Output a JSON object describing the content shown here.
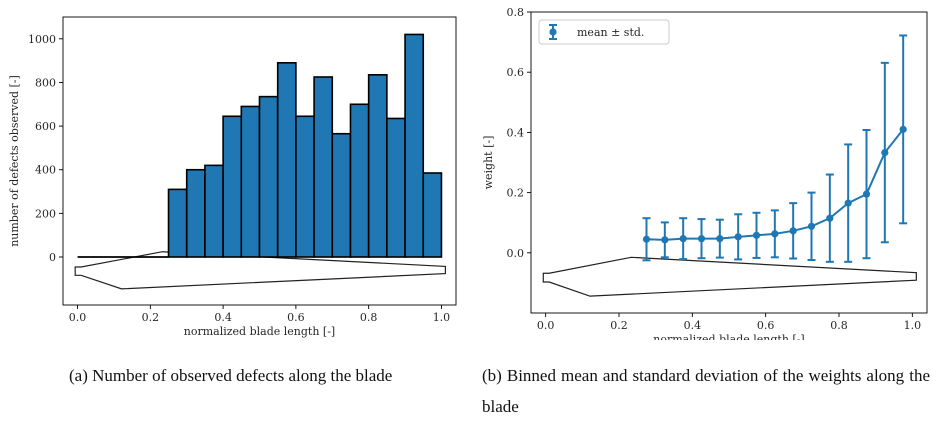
{
  "chart_data": [
    {
      "type": "bar",
      "ylabel": "number of defects observed [-]",
      "xlabel": "normalized blade length [-]",
      "xlim": [
        -0.04,
        1.04
      ],
      "ylim": [
        -220,
        1100
      ],
      "xticks": [
        0.0,
        0.2,
        0.4,
        0.6,
        0.8,
        1.0
      ],
      "xtick_labels": [
        "0.0",
        "0.2",
        "0.4",
        "0.6",
        "0.8",
        "1.0"
      ],
      "yticks": [
        0,
        200,
        400,
        600,
        800,
        1000
      ],
      "ytick_labels": [
        "0",
        "200",
        "400",
        "600",
        "800",
        "1000"
      ],
      "bin_edges": [
        0.25,
        0.3,
        0.35,
        0.4,
        0.45,
        0.5,
        0.55,
        0.6,
        0.65,
        0.7,
        0.75,
        0.8,
        0.85,
        0.9,
        0.95,
        1.0
      ],
      "values": [
        310,
        400,
        420,
        645,
        690,
        735,
        890,
        645,
        825,
        565,
        700,
        835,
        635,
        1020,
        385
      ],
      "zero_line": [
        0.0,
        0.25
      ],
      "bar_color": "#1f77b4",
      "grid": false
    },
    {
      "type": "line",
      "ylabel": "weight [-]",
      "xlabel": "normalized blade length [-]",
      "xlim": [
        -0.04,
        1.04
      ],
      "ylim": [
        -0.2,
        0.8
      ],
      "xticks": [
        0.0,
        0.2,
        0.4,
        0.6,
        0.8,
        1.0
      ],
      "xtick_labels": [
        "0.0",
        "0.2",
        "0.4",
        "0.6",
        "0.8",
        "1.0"
      ],
      "yticks": [
        0.0,
        0.2,
        0.4,
        0.6,
        0.8
      ],
      "ytick_labels": [
        "0.0",
        "0.2",
        "0.4",
        "0.6",
        "0.8"
      ],
      "series": [
        {
          "name": "mean ± std.",
          "x": [
            0.275,
            0.325,
            0.375,
            0.425,
            0.475,
            0.525,
            0.575,
            0.625,
            0.675,
            0.725,
            0.775,
            0.825,
            0.875,
            0.925,
            0.975
          ],
          "y": [
            0.045,
            0.043,
            0.047,
            0.047,
            0.047,
            0.053,
            0.058,
            0.063,
            0.073,
            0.088,
            0.115,
            0.165,
            0.195,
            0.333,
            0.41
          ],
          "err": [
            0.07,
            0.058,
            0.068,
            0.065,
            0.063,
            0.075,
            0.075,
            0.078,
            0.092,
            0.112,
            0.145,
            0.195,
            0.213,
            0.298,
            0.312
          ]
        }
      ],
      "legend_position": "top-left",
      "line_color": "#1f77b4",
      "grid": false
    }
  ],
  "captions": {
    "a": "(a) Number of observed defects along the blade",
    "b": "(b) Binned mean and standard deviation of the weights along the blade"
  }
}
